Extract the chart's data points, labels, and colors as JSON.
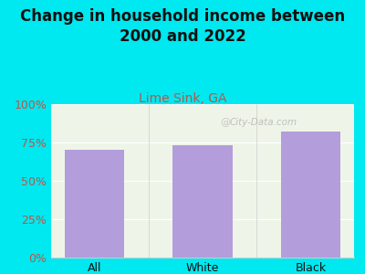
{
  "categories": [
    "All",
    "White",
    "Black"
  ],
  "values": [
    70,
    73,
    82
  ],
  "bar_color": "#b39ddb",
  "title_line1": "Change in household income between",
  "title_line2": "2000 and 2022",
  "subtitle": "Lime Sink, GA",
  "title_color": "#111111",
  "subtitle_color": "#b5584a",
  "ytick_color": "#b5584a",
  "xtick_color": "#111111",
  "background_color": "#00e8f0",
  "plot_bg_color": "#eef5e8",
  "ylim": [
    0,
    100
  ],
  "yticks": [
    0,
    25,
    50,
    75,
    100
  ],
  "ytick_labels": [
    "0%",
    "25%",
    "50%",
    "75%",
    "100%"
  ],
  "watermark": "City-Data.com",
  "title_fontsize": 12,
  "subtitle_fontsize": 10,
  "tick_fontsize": 9,
  "bar_width": 0.55
}
